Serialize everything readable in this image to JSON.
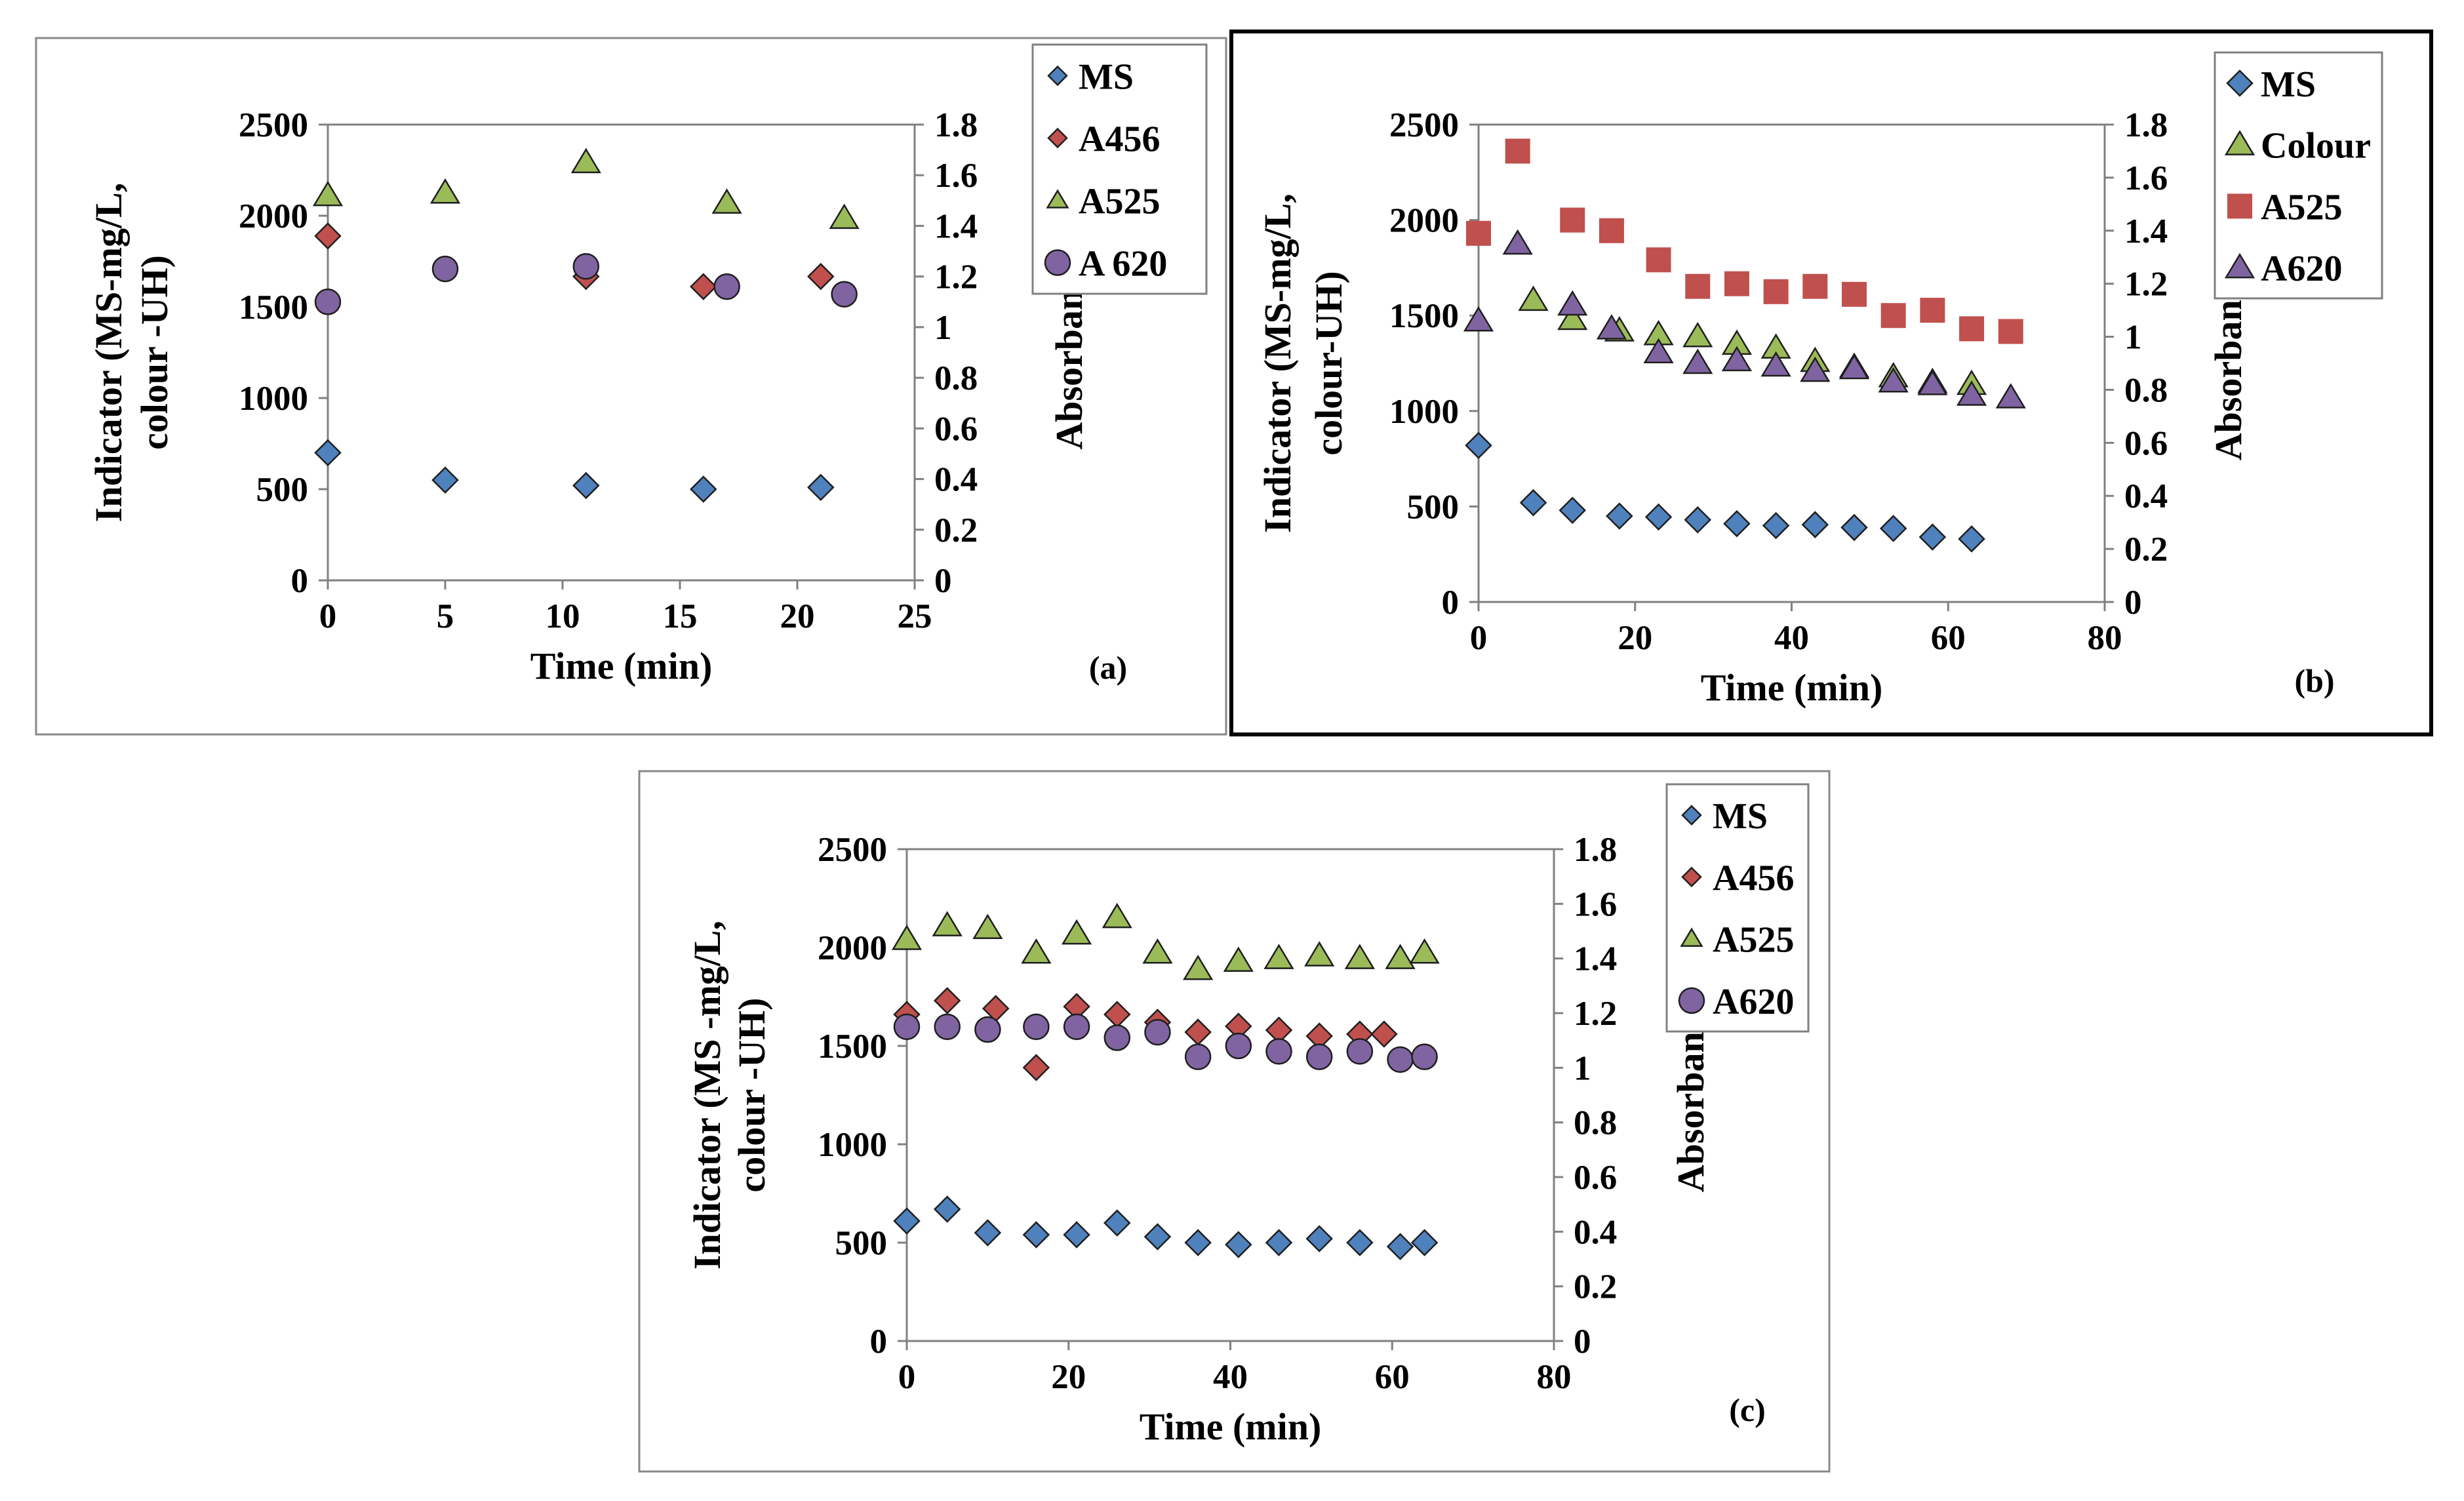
{
  "colors": {
    "ms": "#4f81bd",
    "a456": "#c0504d",
    "a525_green": "#9bbb59",
    "a525_red": "#c0504d",
    "a620_purple": "#8064a2",
    "marker_stroke": "#1f1f1f",
    "axis": "#808080",
    "frame": "#888888"
  },
  "chart_data": [
    {
      "id": "a",
      "type": "scatter",
      "panel_label": "(a)",
      "xlabel": "Time (min)",
      "ylabel_line1": "Indicator (MS-mg/L,",
      "ylabel_line2": "colour -UH)",
      "y2label": "Absorbance",
      "xlim": [
        0,
        25
      ],
      "ylim": [
        0,
        2500
      ],
      "y2lim": [
        0,
        1.8
      ],
      "xticks": [
        "0",
        "5",
        "10",
        "15",
        "20",
        "25"
      ],
      "yticks": [
        "0",
        "500",
        "1000",
        "1500",
        "2000",
        "2500"
      ],
      "y2ticks": [
        "0",
        "0.2",
        "0.4",
        "0.6",
        "0.8",
        "1",
        "1.2",
        "1.4",
        "1.6",
        "1.8"
      ],
      "legend_position": "top-right-outside",
      "series": [
        {
          "name": "MS",
          "marker": "diamond",
          "color": "ms",
          "axis": "left",
          "legend_mark": "small",
          "x": [
            0,
            5,
            11,
            16,
            21
          ],
          "y": [
            700,
            550,
            520,
            500,
            510
          ]
        },
        {
          "name": "A456",
          "marker": "diamond",
          "color": "a456",
          "axis": "right",
          "legend_mark": "small",
          "x": [
            0,
            11,
            16,
            21
          ],
          "y": [
            1.36,
            1.2,
            1.16,
            1.2
          ]
        },
        {
          "name": "A525",
          "marker": "triangle",
          "color": "a525_green",
          "axis": "right",
          "legend_mark": "small",
          "x": [
            0,
            5,
            11,
            17,
            22
          ],
          "y": [
            1.52,
            1.53,
            1.65,
            1.49,
            1.43
          ]
        },
        {
          "name": "A 620",
          "marker": "circle",
          "color": "a620_purple",
          "axis": "right",
          "legend_mark": "large",
          "x": [
            0,
            5,
            11,
            17,
            22
          ],
          "y": [
            1.1,
            1.23,
            1.24,
            1.16,
            1.13
          ]
        }
      ]
    },
    {
      "id": "b",
      "type": "scatter",
      "panel_label": "(b)",
      "xlabel": "Time (min)",
      "ylabel_line1": "Indicator (MS-mg/L,",
      "ylabel_line2": "colour-UH)",
      "y2label": "Absorbance",
      "xlim": [
        0,
        80
      ],
      "ylim": [
        0,
        2500
      ],
      "y2lim": [
        0,
        1.8
      ],
      "xticks": [
        "0",
        "20",
        "40",
        "60",
        "80"
      ],
      "yticks": [
        "0",
        "500",
        "1000",
        "1500",
        "2000",
        "2500"
      ],
      "y2ticks": [
        "0",
        "0.2",
        "0.4",
        "0.6",
        "0.8",
        "1",
        "1.2",
        "1.4",
        "1.6",
        "1.8"
      ],
      "legend_position": "top-right-outside",
      "series": [
        {
          "name": "MS",
          "marker": "diamond",
          "color": "ms",
          "axis": "left",
          "legend_mark": "large",
          "x": [
            0,
            7,
            12,
            18,
            23,
            28,
            33,
            38,
            43,
            48,
            53,
            58,
            63
          ],
          "y": [
            820,
            520,
            480,
            450,
            445,
            430,
            410,
            400,
            405,
            390,
            385,
            340,
            330
          ]
        },
        {
          "name": "Colour",
          "marker": "triangle",
          "color": "a525_green",
          "axis": "left",
          "legend_mark": "large",
          "x": [
            7,
            12,
            18,
            23,
            28,
            33,
            38,
            43,
            48,
            53,
            58,
            63
          ],
          "y": [
            1580,
            1480,
            1420,
            1400,
            1390,
            1350,
            1330,
            1260,
            1230,
            1180,
            1150,
            1140
          ]
        },
        {
          "name": "A525",
          "marker": "square",
          "color": "a525_red",
          "axis": "right",
          "legend_mark": "large",
          "x": [
            0,
            5,
            12,
            17,
            23,
            28,
            33,
            38,
            43,
            48,
            53,
            58,
            63,
            68
          ],
          "y": [
            1.39,
            1.7,
            1.44,
            1.4,
            1.29,
            1.19,
            1.2,
            1.17,
            1.19,
            1.16,
            1.08,
            1.1,
            1.03,
            1.02
          ]
        },
        {
          "name": "A620",
          "marker": "triangle",
          "color": "a620_purple",
          "axis": "right",
          "legend_mark": "large",
          "x": [
            0,
            5,
            12,
            17,
            23,
            28,
            33,
            38,
            43,
            48,
            53,
            58,
            63,
            68
          ],
          "y": [
            1.06,
            1.35,
            1.12,
            1.03,
            0.94,
            0.9,
            0.91,
            0.89,
            0.87,
            0.88,
            0.83,
            0.82,
            0.78,
            0.77
          ]
        }
      ]
    },
    {
      "id": "c",
      "type": "scatter",
      "panel_label": "(c)",
      "xlabel": "Time (min)",
      "ylabel_line1": "Indicator (MS -mg/L,",
      "ylabel_line2": "colour -UH)",
      "y2label": "Absorbance",
      "xlim": [
        0,
        80
      ],
      "ylim": [
        0,
        2500
      ],
      "y2lim": [
        0,
        1.8
      ],
      "xticks": [
        "0",
        "20",
        "40",
        "60",
        "80"
      ],
      "yticks": [
        "0",
        "500",
        "1000",
        "1500",
        "2000",
        "2500"
      ],
      "y2ticks": [
        "0",
        "0.2",
        "0.4",
        "0.6",
        "0.8",
        "1",
        "1.2",
        "1.4",
        "1.6",
        "1.8"
      ],
      "legend_position": "top-right-outside",
      "series": [
        {
          "name": "MS",
          "marker": "diamond",
          "color": "ms",
          "axis": "left",
          "legend_mark": "small",
          "x": [
            0,
            5,
            10,
            16,
            21,
            26,
            31,
            36,
            41,
            46,
            51,
            56,
            61,
            64
          ],
          "y": [
            610,
            670,
            550,
            540,
            540,
            600,
            530,
            500,
            490,
            500,
            520,
            500,
            480,
            500
          ]
        },
        {
          "name": "A456",
          "marker": "diamond",
          "color": "a456",
          "axis": "left",
          "legend_mark": "small",
          "x": [
            0,
            5,
            11,
            16,
            21,
            26,
            31,
            36,
            41,
            46,
            51,
            56,
            59
          ],
          "y": [
            1660,
            1730,
            1690,
            1390,
            1700,
            1660,
            1620,
            1570,
            1600,
            1580,
            1550,
            1560,
            1560
          ]
        },
        {
          "name": "A525",
          "marker": "triangle",
          "color": "a525_green",
          "axis": "right",
          "legend_mark": "small",
          "x": [
            0,
            5,
            10,
            16,
            21,
            26,
            31,
            36,
            41,
            46,
            51,
            56,
            61,
            64
          ],
          "y": [
            1.47,
            1.52,
            1.51,
            1.42,
            1.49,
            1.55,
            1.42,
            1.36,
            1.39,
            1.4,
            1.41,
            1.4,
            1.4,
            1.42
          ]
        },
        {
          "name": "A620",
          "marker": "circle",
          "color": "a620_purple",
          "axis": "right",
          "legend_mark": "large",
          "x": [
            0,
            5,
            10,
            16,
            21,
            26,
            31,
            36,
            41,
            46,
            51,
            56,
            61,
            64
          ],
          "y": [
            1.15,
            1.15,
            1.14,
            1.15,
            1.15,
            1.11,
            1.13,
            1.04,
            1.08,
            1.06,
            1.04,
            1.06,
            1.03,
            1.04
          ]
        }
      ]
    }
  ]
}
